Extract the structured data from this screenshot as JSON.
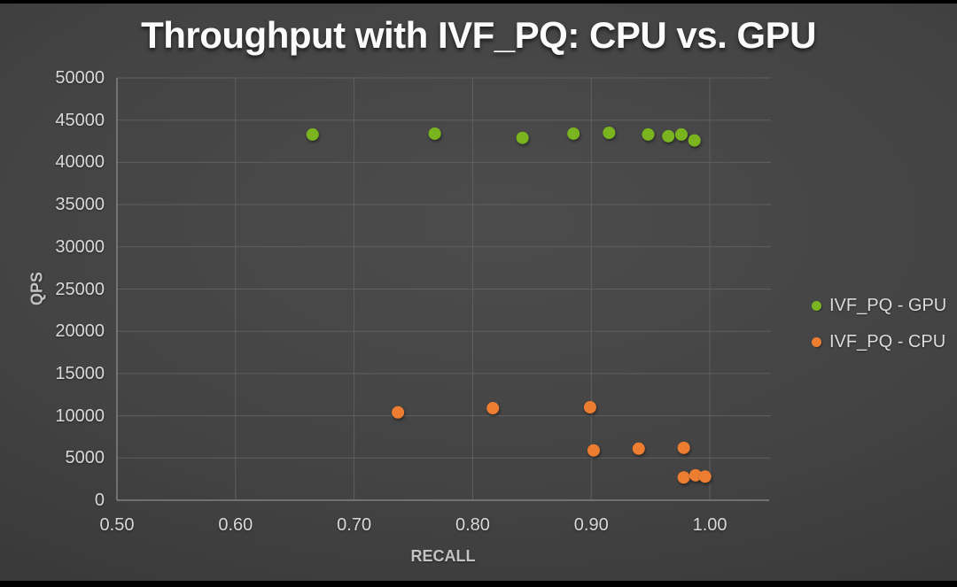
{
  "title": "Throughput with IVF_PQ: CPU vs. GPU",
  "colors": {
    "gpu_series": "#7ab520",
    "cpu_series": "#ed7d31",
    "gridline": "#5f5f5f",
    "axis_line": "#8c8c8c",
    "tick_text": "#d9d9d9",
    "title_text": "#fbfbfb",
    "background_center": "#4c4c4c",
    "background_edge": "#2c2c2c"
  },
  "chart_data": {
    "type": "scatter",
    "title": "Throughput with IVF_PQ: CPU vs. GPU",
    "xlabel": "RECALL",
    "ylabel": "QPS",
    "xlim": [
      0.5,
      1.05
    ],
    "ylim": [
      0,
      50000
    ],
    "grid": true,
    "legend_position": "right",
    "x_tick_labels": [
      "0.50",
      "0.60",
      "0.70",
      "0.80",
      "0.90",
      "1.00"
    ],
    "x_tick_values": [
      0.5,
      0.6,
      0.7,
      0.8,
      0.9,
      1.0
    ],
    "y_tick_labels": [
      "0",
      "5000",
      "10000",
      "15000",
      "20000",
      "25000",
      "30000",
      "35000",
      "40000",
      "45000",
      "50000"
    ],
    "y_tick_values": [
      0,
      5000,
      10000,
      15000,
      20000,
      25000,
      30000,
      35000,
      40000,
      45000,
      50000
    ],
    "series": [
      {
        "name": "IVF_PQ - GPU",
        "color": "#7ab520",
        "points": [
          [
            0.665,
            43300
          ],
          [
            0.768,
            43400
          ],
          [
            0.842,
            42900
          ],
          [
            0.885,
            43400
          ],
          [
            0.915,
            43500
          ],
          [
            0.948,
            43300
          ],
          [
            0.965,
            43100
          ],
          [
            0.976,
            43300
          ],
          [
            0.987,
            42600
          ]
        ]
      },
      {
        "name": "IVF_PQ - CPU",
        "color": "#ed7d31",
        "points": [
          [
            0.737,
            10400
          ],
          [
            0.817,
            10900
          ],
          [
            0.899,
            11000
          ],
          [
            0.902,
            5900
          ],
          [
            0.94,
            6100
          ],
          [
            0.978,
            6200
          ],
          [
            0.978,
            2700
          ],
          [
            0.988,
            2950
          ],
          [
            0.996,
            2800
          ]
        ]
      }
    ]
  }
}
